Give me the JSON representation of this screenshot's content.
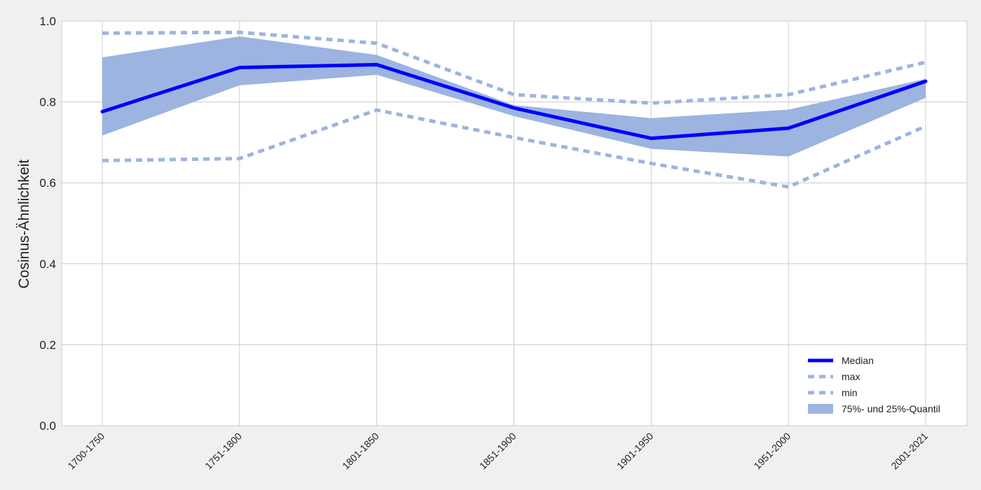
{
  "chart_data": {
    "type": "line",
    "title": "",
    "xlabel": "",
    "ylabel": "Cosinus-Ähnlichkeit",
    "categories": [
      "1700-1750",
      "1751-1800",
      "1801-1850",
      "1851-1900",
      "1901-1950",
      "1951-2000",
      "2001-2021"
    ],
    "ylim": [
      0.0,
      1.0
    ],
    "yticks": [
      "0.0",
      "0.2",
      "0.4",
      "0.6",
      "0.8",
      "1.0"
    ],
    "grid": true,
    "legend_position": "bottom-right",
    "series": [
      {
        "name": "Median",
        "style": "solid",
        "color": "#0000ff",
        "values": [
          0.776,
          0.885,
          0.892,
          0.785,
          0.71,
          0.735,
          0.851
        ]
      },
      {
        "name": "max",
        "style": "dashed",
        "color": "#9db4e0",
        "values": [
          0.97,
          0.972,
          0.945,
          0.818,
          0.797,
          0.818,
          0.898
        ]
      },
      {
        "name": "min",
        "style": "dashed",
        "color": "#9db4e0",
        "values": [
          0.655,
          0.66,
          0.78,
          0.712,
          0.648,
          0.59,
          0.74
        ]
      }
    ],
    "band": {
      "name": "75%- und 25%-Quantil",
      "color": "#9db4e0",
      "upper": [
        0.91,
        0.962,
        0.916,
        0.792,
        0.76,
        0.781,
        0.857
      ],
      "lower": [
        0.717,
        0.841,
        0.867,
        0.765,
        0.684,
        0.665,
        0.81
      ]
    }
  }
}
